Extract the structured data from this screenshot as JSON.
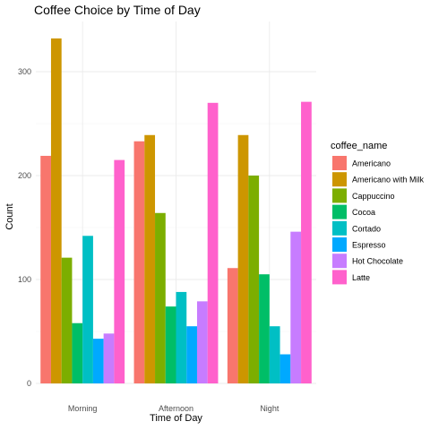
{
  "chart_data": {
    "type": "bar",
    "title": "Coffee Choice by Time of Day",
    "xlabel": "Time of Day",
    "ylabel": "Count",
    "categories": [
      "Morning",
      "Afternoon",
      "Night"
    ],
    "ylim": [
      0,
      345
    ],
    "yticks": [
      0,
      100,
      200,
      300
    ],
    "grid": true,
    "legend": {
      "title": "coffee_name",
      "position": "right"
    },
    "series": [
      {
        "name": "Americano",
        "color": "#F8766D",
        "values": [
          219,
          233,
          111
        ]
      },
      {
        "name": "Americano with Milk",
        "color": "#CD9600",
        "values": [
          332,
          239,
          239
        ]
      },
      {
        "name": "Cappuccino",
        "color": "#7CAE00",
        "values": [
          121,
          164,
          200
        ]
      },
      {
        "name": "Cocoa",
        "color": "#00BE67",
        "values": [
          58,
          74,
          105
        ]
      },
      {
        "name": "Cortado",
        "color": "#00BFC4",
        "values": [
          142,
          88,
          55
        ]
      },
      {
        "name": "Espresso",
        "color": "#00A9FF",
        "values": [
          43,
          55,
          28
        ]
      },
      {
        "name": "Hot Chocolate",
        "color": "#C77CFF",
        "values": [
          48,
          79,
          146
        ]
      },
      {
        "name": "Latte",
        "color": "#FF61CC",
        "values": [
          215,
          270,
          271
        ]
      }
    ]
  }
}
